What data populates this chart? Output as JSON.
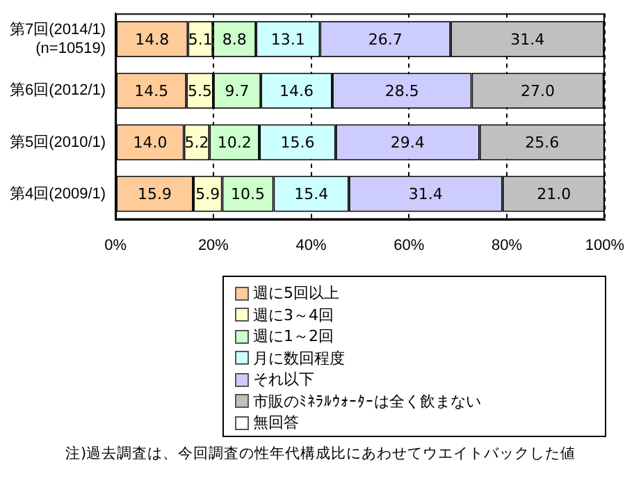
{
  "chart_data": {
    "type": "bar",
    "orientation": "horizontal",
    "stacked": true,
    "categories": [
      "第7回(2014/1)\n(n=10519)",
      "第6回(2012/1)",
      "第5回(2010/1)",
      "第4回(2009/1)"
    ],
    "series": [
      {
        "name": "週に5回以上",
        "color": "#ffcc99",
        "values": [
          14.8,
          14.5,
          14.0,
          15.9
        ],
        "value_labels": [
          "14.8",
          "14.5",
          "14.0",
          "15.9"
        ]
      },
      {
        "name": "週に3～4回",
        "color": "#ffffcc",
        "values": [
          5.1,
          5.5,
          5.2,
          5.9
        ],
        "value_labels": [
          "5.1",
          "5.5",
          "5.2",
          "5.9"
        ]
      },
      {
        "name": "週に1～2回",
        "color": "#ccffcc",
        "values": [
          8.8,
          9.7,
          10.2,
          10.5
        ],
        "value_labels": [
          "8.8",
          "9.7",
          "10.2",
          "10.5"
        ]
      },
      {
        "name": "月に数回程度",
        "color": "#ccffff",
        "values": [
          13.1,
          14.6,
          15.6,
          15.4
        ],
        "value_labels": [
          "13.1",
          "14.6",
          "15.6",
          "15.4"
        ]
      },
      {
        "name": "それ以下",
        "color": "#ccccff",
        "values": [
          26.7,
          28.5,
          29.4,
          31.4
        ],
        "value_labels": [
          "26.7",
          "28.5",
          "29.4",
          "31.4"
        ]
      },
      {
        "name": "市販のﾐﾈﾗﾙｳｫｰﾀｰは全く飲まない",
        "color": "#c0c0c0",
        "values": [
          31.4,
          27.0,
          25.6,
          21.0
        ],
        "value_labels": [
          "31.4",
          "27.0",
          "25.6",
          "21.0"
        ]
      },
      {
        "name": "無回答",
        "color": "#ffffff",
        "values": [
          null,
          null,
          null,
          null
        ]
      }
    ],
    "xlim": [
      0,
      100
    ],
    "xticks": [
      {
        "value": 0,
        "label": "0%"
      },
      {
        "value": 20,
        "label": "20%"
      },
      {
        "value": 40,
        "label": "40%"
      },
      {
        "value": 60,
        "label": "60%"
      },
      {
        "value": 80,
        "label": "80%"
      },
      {
        "value": 100,
        "label": "100%"
      }
    ],
    "grid": "x",
    "legend": "bottom",
    "annotations": [
      "注)過去調査は、今回調査の性年代構成比にあわせてウエイトバックした値"
    ]
  }
}
